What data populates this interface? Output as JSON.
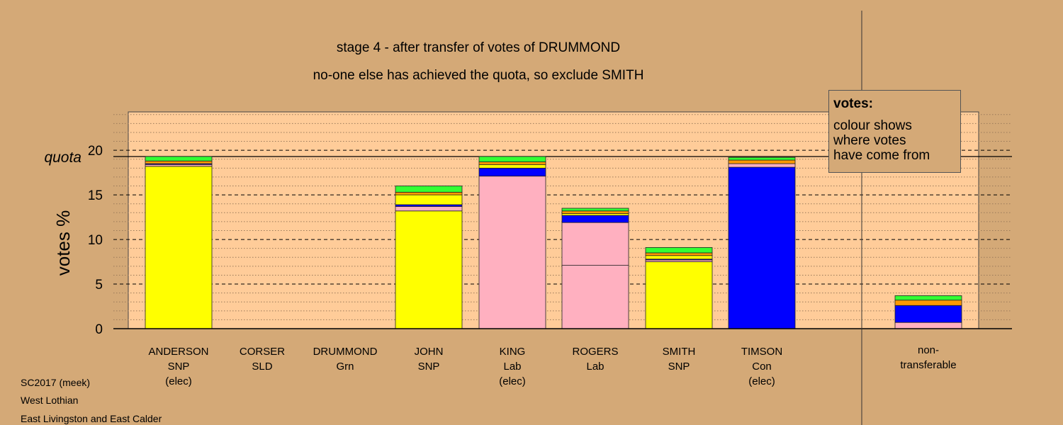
{
  "chart_data": {
    "type": "bar",
    "stacked": true,
    "title": "stage 4 - after transfer of votes of DRUMMOND",
    "subtitle": "no-one else has achieved the quota, so exclude SMITH",
    "ylabel": "votes %",
    "quota_label": "quota",
    "quota_value": 19.3,
    "ylim": [
      0,
      24.3
    ],
    "yticks": [
      "0",
      "5",
      "10",
      "15",
      "20"
    ],
    "ytick_values": [
      0,
      5,
      10,
      15,
      20
    ],
    "grid": "dashed at major ticks, dotted at each unit",
    "categories": [
      {
        "name": "ANDERSON",
        "party": "SNP",
        "status": "(elec)"
      },
      {
        "name": "CORSER",
        "party": "SLD",
        "status": ""
      },
      {
        "name": "DRUMMOND",
        "party": "Grn",
        "status": ""
      },
      {
        "name": "JOHN",
        "party": "SNP",
        "status": ""
      },
      {
        "name": "KING",
        "party": "Lab",
        "status": "(elec)"
      },
      {
        "name": "ROGERS",
        "party": "Lab",
        "status": ""
      },
      {
        "name": "SMITH",
        "party": "SNP",
        "status": ""
      },
      {
        "name": "TIMSON",
        "party": "Con",
        "status": "(elec)"
      }
    ],
    "nontransferable": {
      "line1": "non-",
      "line2": "transferable"
    },
    "colors": {
      "yellow": "#ffff00",
      "pink": "#ffb0c0",
      "blue": "#0000ff",
      "orange": "#ff9900",
      "green": "#33ff33",
      "plot_bg": "#ffcc99",
      "page_bg": "#d4a977"
    },
    "bars": [
      {
        "segments": [
          {
            "color": "yellow",
            "value": 18.2
          },
          {
            "color": "pink",
            "value": 0.2
          },
          {
            "color": "blue",
            "value": 0.1
          },
          {
            "color": "orange",
            "value": 0.3
          },
          {
            "color": "green",
            "value": 0.5
          }
        ]
      },
      {
        "segments": []
      },
      {
        "segments": []
      },
      {
        "segments": [
          {
            "color": "yellow",
            "value": 13.2
          },
          {
            "color": "pink",
            "value": 0.5
          },
          {
            "color": "blue",
            "value": 0.2
          },
          {
            "color": "yellow",
            "value": 1.1
          },
          {
            "color": "orange",
            "value": 0.3
          },
          {
            "color": "green",
            "value": 0.7
          }
        ]
      },
      {
        "segments": [
          {
            "color": "pink",
            "value": 17.1
          },
          {
            "color": "blue",
            "value": 0.9
          },
          {
            "color": "yellow",
            "value": 0.4
          },
          {
            "color": "orange",
            "value": 0.3
          },
          {
            "color": "green",
            "value": 0.6
          }
        ]
      },
      {
        "segments": [
          {
            "color": "pink",
            "value": 7.1
          },
          {
            "color": "pink",
            "value": 4.8
          },
          {
            "color": "blue",
            "value": 0.8
          },
          {
            "color": "yellow",
            "value": 0.2
          },
          {
            "color": "orange",
            "value": 0.3
          },
          {
            "color": "green",
            "value": 0.3
          }
        ]
      },
      {
        "segments": [
          {
            "color": "yellow",
            "value": 7.5
          },
          {
            "color": "pink",
            "value": 0.2
          },
          {
            "color": "blue",
            "value": 0.1
          },
          {
            "color": "yellow",
            "value": 0.4
          },
          {
            "color": "orange",
            "value": 0.3
          },
          {
            "color": "green",
            "value": 0.6
          }
        ]
      },
      {
        "segments": [
          {
            "color": "blue",
            "value": 18.1
          },
          {
            "color": "pink",
            "value": 0.4
          },
          {
            "color": "orange",
            "value": 0.4
          },
          {
            "color": "green",
            "value": 0.3
          }
        ]
      }
    ],
    "nontransferable_bar": {
      "segments": [
        {
          "color": "pink",
          "value": 0.7
        },
        {
          "color": "blue",
          "value": 1.9
        },
        {
          "color": "orange",
          "value": 0.6
        },
        {
          "color": "green",
          "value": 0.5
        }
      ]
    }
  },
  "legend": {
    "title": "votes:",
    "line1": "colour shows",
    "line2": "where votes",
    "line3": "have come from"
  },
  "footer": {
    "line1": "SC2017 (meek)",
    "line2": "West Lothian",
    "line3": "East Livingston and East Calder"
  }
}
